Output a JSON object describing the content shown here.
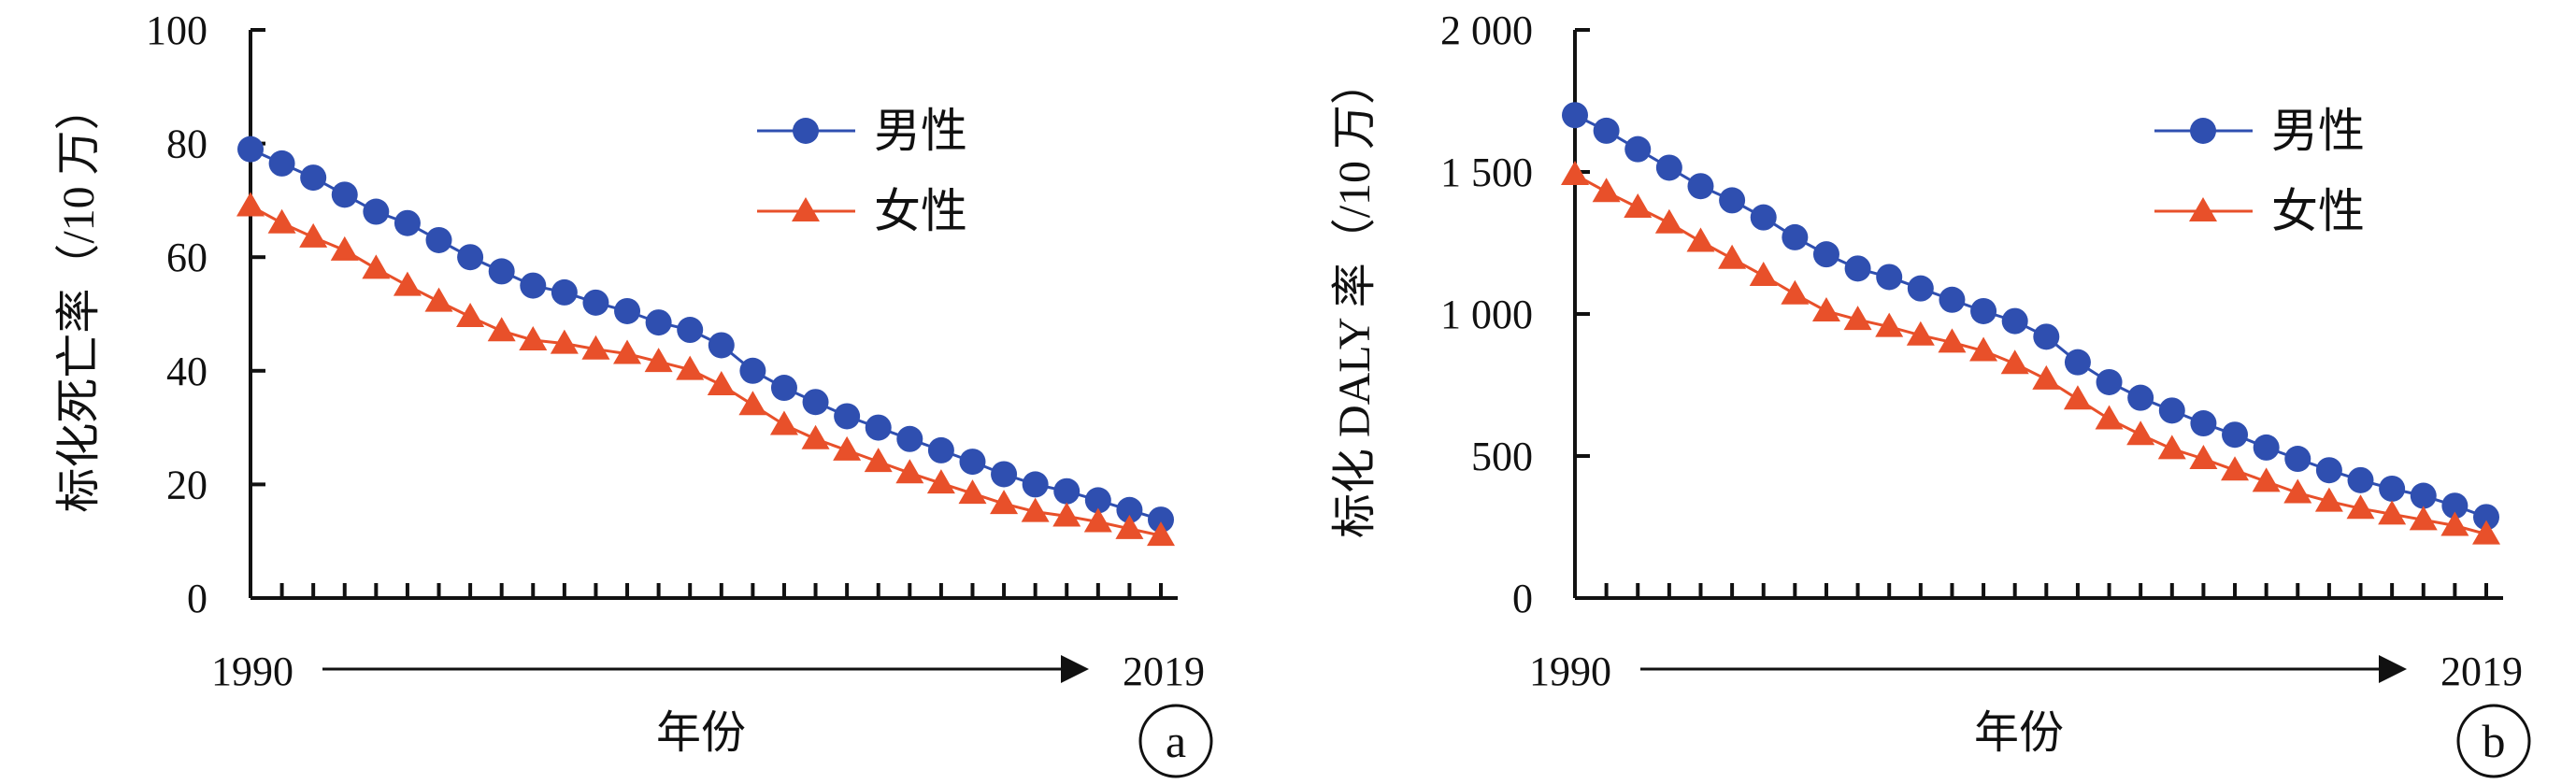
{
  "chart_data": [
    {
      "panel": "a",
      "type": "line",
      "xlabel": "年份",
      "ylabel": "标化死亡率（/10 万）",
      "x_start": "1990",
      "x_end": "2019",
      "x": [
        1990,
        1991,
        1992,
        1993,
        1994,
        1995,
        1996,
        1997,
        1998,
        1999,
        2000,
        2001,
        2002,
        2003,
        2004,
        2005,
        2006,
        2007,
        2008,
        2009,
        2010,
        2011,
        2012,
        2013,
        2014,
        2015,
        2016,
        2017,
        2018,
        2019
      ],
      "ylim": [
        0,
        100
      ],
      "yticks": [
        "0",
        "20",
        "40",
        "60",
        "80",
        "100"
      ],
      "series": [
        {
          "name": "男性",
          "marker": "circle",
          "color": "#2f4fb0",
          "values": [
            79,
            76.5,
            74,
            71,
            68,
            66,
            63,
            60,
            57.5,
            55,
            53.8,
            52,
            50.5,
            48.5,
            47.2,
            44.5,
            40,
            37,
            34.5,
            32,
            30,
            28,
            26,
            24,
            21.8,
            20,
            18.8,
            17.2,
            15.5,
            13.8
          ]
        },
        {
          "name": "女性",
          "marker": "triangle",
          "color": "#e8502a",
          "values": [
            69,
            66,
            63.5,
            61.2,
            58,
            55,
            52.2,
            49.5,
            47,
            45.4,
            44.8,
            43.8,
            43,
            41.6,
            40.2,
            37.5,
            34,
            30.5,
            28,
            26,
            24,
            22,
            20.2,
            18.4,
            16.6,
            15.2,
            14.4,
            13.4,
            12.2,
            11
          ]
        }
      ],
      "legend": "top-right",
      "panel_label": "a"
    },
    {
      "panel": "b",
      "type": "line",
      "xlabel": "年份",
      "ylabel": "标化 DALY 率（/10 万）",
      "x_start": "1990",
      "x_end": "2019",
      "x": [
        1990,
        1991,
        1992,
        1993,
        1994,
        1995,
        1996,
        1997,
        1998,
        1999,
        2000,
        2001,
        2002,
        2003,
        2004,
        2005,
        2006,
        2007,
        2008,
        2009,
        2010,
        2011,
        2012,
        2013,
        2014,
        2015,
        2016,
        2017,
        2018,
        2019
      ],
      "ylim": [
        0,
        2000
      ],
      "yticks": [
        "0",
        "500",
        "1 000",
        "1 500",
        "2 000"
      ],
      "series": [
        {
          "name": "男性",
          "marker": "circle",
          "color": "#2f4fb0",
          "values": [
            1700,
            1645,
            1580,
            1515,
            1450,
            1400,
            1340,
            1270,
            1210,
            1160,
            1130,
            1090,
            1050,
            1010,
            975,
            920,
            830,
            760,
            705,
            660,
            615,
            575,
            530,
            490,
            450,
            415,
            385,
            360,
            325,
            285
          ]
        },
        {
          "name": "女性",
          "marker": "triangle",
          "color": "#e8502a",
          "values": [
            1490,
            1430,
            1375,
            1320,
            1255,
            1195,
            1135,
            1070,
            1010,
            980,
            955,
            925,
            900,
            870,
            825,
            770,
            700,
            630,
            575,
            525,
            490,
            450,
            410,
            370,
            340,
            315,
            295,
            275,
            255,
            225
          ]
        }
      ],
      "legend": "top-right",
      "panel_label": "b"
    }
  ]
}
